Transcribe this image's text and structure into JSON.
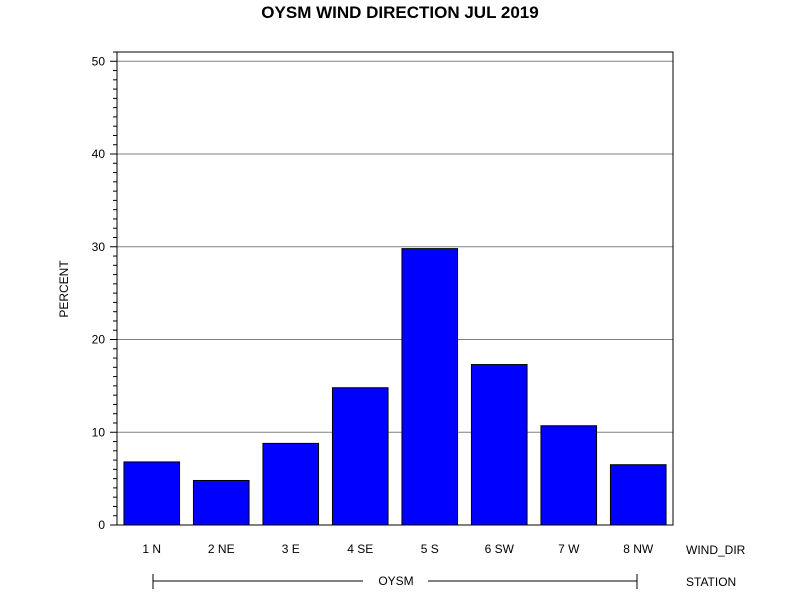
{
  "chart_data": {
    "type": "bar",
    "title": "OYSM WIND DIRECTION JUL 2019",
    "ylabel": "PERCENT",
    "xlabel": "WIND_DIR",
    "group_label": "STATION",
    "group_value": "OYSM",
    "categories": [
      "1 N",
      "2 NE",
      "3 E",
      "4 SE",
      "5 S",
      "6 SW",
      "7 W",
      "8 NW"
    ],
    "values": [
      6.8,
      4.8,
      8.8,
      14.8,
      29.8,
      17.3,
      10.7,
      6.5
    ],
    "ylim": [
      0,
      51
    ],
    "yticks": [
      0,
      10,
      20,
      30,
      40,
      50
    ],
    "grid": true,
    "bar_color": "#0000ff",
    "bar_edge_color": "#000000",
    "grid_color": "#808080"
  }
}
